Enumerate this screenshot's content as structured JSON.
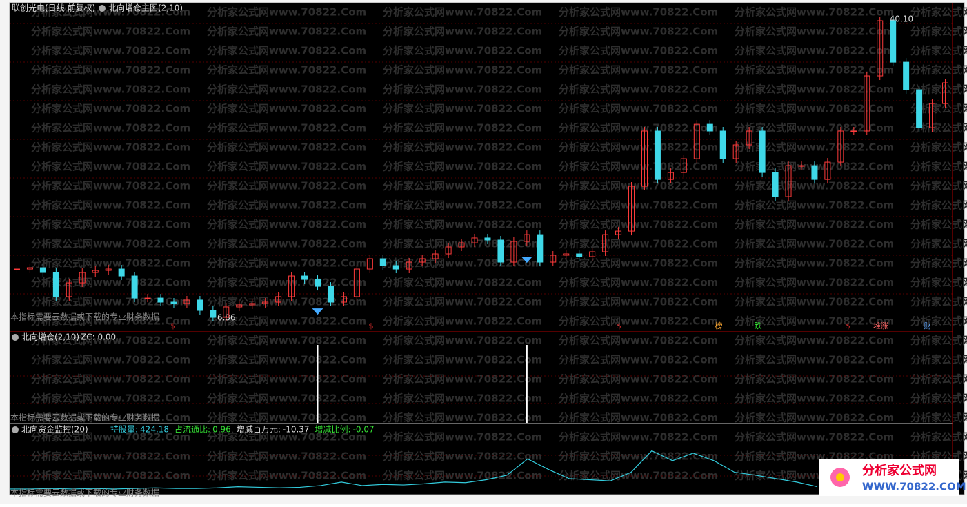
{
  "header": {
    "stock": "联创光电(日线 前复权)",
    "indicator": "北向增仓主图(2,10)"
  },
  "watermark": "分析家公式网www.70822.Com",
  "notice": "本指标需要云数据或下载的专业财务数据",
  "main_panel": {
    "closes": [
      12.17,
      12.32,
      11.79,
      9.14,
      10.65,
      11.79,
      12.02,
      12.17,
      11.41,
      8.98,
      8.98,
      8.53,
      8.38,
      8.76,
      7.62,
      6.86,
      8.0,
      8.23,
      8.38,
      8.53,
      9.14,
      11.41,
      11.03,
      10.27,
      8.53,
      9.14,
      12.17,
      13.31,
      12.55,
      12.17,
      12.93,
      13.31,
      13.84,
      14.6,
      15.05,
      15.59,
      15.36,
      12.93,
      15.21,
      15.96,
      12.93,
      13.69,
      13.84,
      13.54,
      14.07,
      15.96,
      16.34,
      21.28,
      27.35,
      22.03,
      22.79,
      24.31,
      28.1,
      27.35,
      24.31,
      25.83,
      27.35,
      22.79,
      20.14,
      23.55,
      23.55,
      22.03,
      23.93,
      27.35,
      27.35,
      33.42,
      39.49,
      34.93,
      31.9,
      27.72,
      30.38,
      32.66
    ],
    "low_label": {
      "value": 6.86,
      "label": "6.86"
    },
    "high_label": {
      "value": 40.1,
      "label": "40.10"
    },
    "signals": [
      23,
      39
    ],
    "markers": [
      "$",
      "$",
      "$",
      "榜",
      "跌",
      "$",
      "堆涨",
      "财"
    ]
  },
  "panel2": {
    "title": "北向增仓(2,10)",
    "zc": "ZC: 0.00"
  },
  "panel3": {
    "title": "北向资金监控(20)",
    "fields": [
      {
        "label": "持股量:",
        "value": "424.18"
      },
      {
        "label": "占流通比:",
        "value": "0.96"
      },
      {
        "label": "增减百万元:",
        "value": "-10.37"
      },
      {
        "label": "增减比例:",
        "value": "-0.07"
      }
    ],
    "ylim": [
      0,
      100
    ],
    "values": [
      6,
      6,
      7,
      6,
      7,
      6,
      7,
      8,
      7,
      7,
      8,
      10,
      9,
      8,
      9,
      12,
      18,
      12,
      14,
      13,
      15,
      18,
      17,
      22,
      30,
      58,
      40,
      24,
      22,
      20,
      35,
      72,
      55,
      68,
      55,
      35,
      30,
      24,
      18,
      10
    ]
  },
  "logo": {
    "name": "分析家公式网",
    "url": "WWW.70822.COM"
  }
}
